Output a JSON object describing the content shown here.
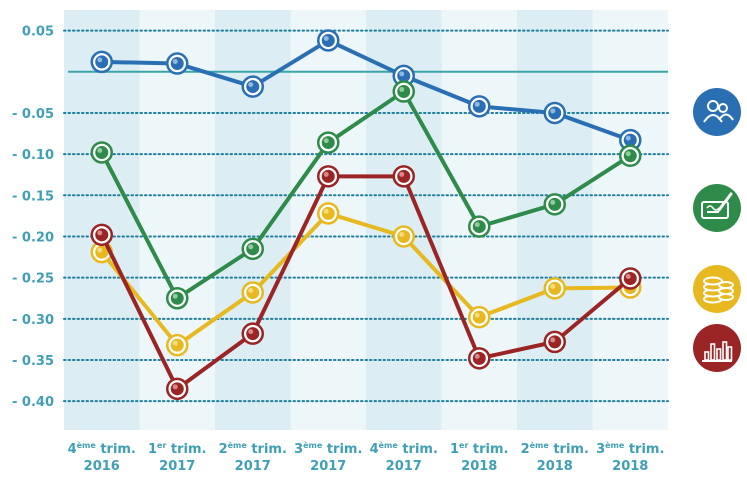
{
  "chart_data": {
    "type": "line",
    "categories": [
      {
        "num": "4",
        "sup": "ème",
        "word": "trim.",
        "year": "2016"
      },
      {
        "num": "1",
        "sup": "er",
        "word": "trim.",
        "year": "2017"
      },
      {
        "num": "2",
        "sup": "ème",
        "word": "trim.",
        "year": "2017"
      },
      {
        "num": "3",
        "sup": "ème",
        "word": "trim.",
        "year": "2017"
      },
      {
        "num": "4",
        "sup": "ème",
        "word": "trim.",
        "year": "2017"
      },
      {
        "num": "1",
        "sup": "er",
        "word": "trim.",
        "year": "2018"
      },
      {
        "num": "2",
        "sup": "ème",
        "word": "trim.",
        "year": "2018"
      },
      {
        "num": "3",
        "sup": "ème",
        "word": "trim.",
        "year": "2018"
      }
    ],
    "ylim": [
      -0.435,
      0.075
    ],
    "yticks": [
      {
        "value": 0.05,
        "label": "0.05"
      },
      {
        "value": -0.05,
        "label": "- 0.05"
      },
      {
        "value": -0.1,
        "label": "- 0.10"
      },
      {
        "value": -0.15,
        "label": "- 0.15"
      },
      {
        "value": -0.2,
        "label": "- 0.20"
      },
      {
        "value": -0.25,
        "label": "- 0.25"
      },
      {
        "value": -0.3,
        "label": "- 0.30"
      },
      {
        "value": -0.35,
        "label": "- 0.35"
      },
      {
        "value": -0.4,
        "label": "- 0.40"
      }
    ],
    "zero_line": 0.0,
    "grid": "horizontal dotted",
    "series": [
      {
        "icon": "people-icon",
        "color": "#2a6fb3",
        "light": "#a9c9ea",
        "values": [
          0.012,
          0.01,
          -0.018,
          0.038,
          -0.005,
          -0.042,
          -0.05,
          -0.083
        ]
      },
      {
        "icon": "cheque-icon",
        "color": "#2e8b4a",
        "light": "#a8dcb3",
        "values": [
          -0.098,
          -0.275,
          -0.215,
          -0.086,
          -0.024,
          -0.188,
          -0.161,
          -0.102
        ]
      },
      {
        "icon": "coins-icon",
        "color": "#e7b81f",
        "light": "#f8e59a",
        "values": [
          -0.219,
          -0.332,
          -0.268,
          -0.172,
          -0.2,
          -0.298,
          -0.263,
          -0.262
        ]
      },
      {
        "icon": "bar-chart-icon",
        "color": "#9b2424",
        "light": "#e6a3a3",
        "values": [
          -0.198,
          -0.385,
          -0.318,
          -0.127,
          -0.127,
          -0.348,
          -0.328,
          -0.251
        ]
      }
    ]
  }
}
